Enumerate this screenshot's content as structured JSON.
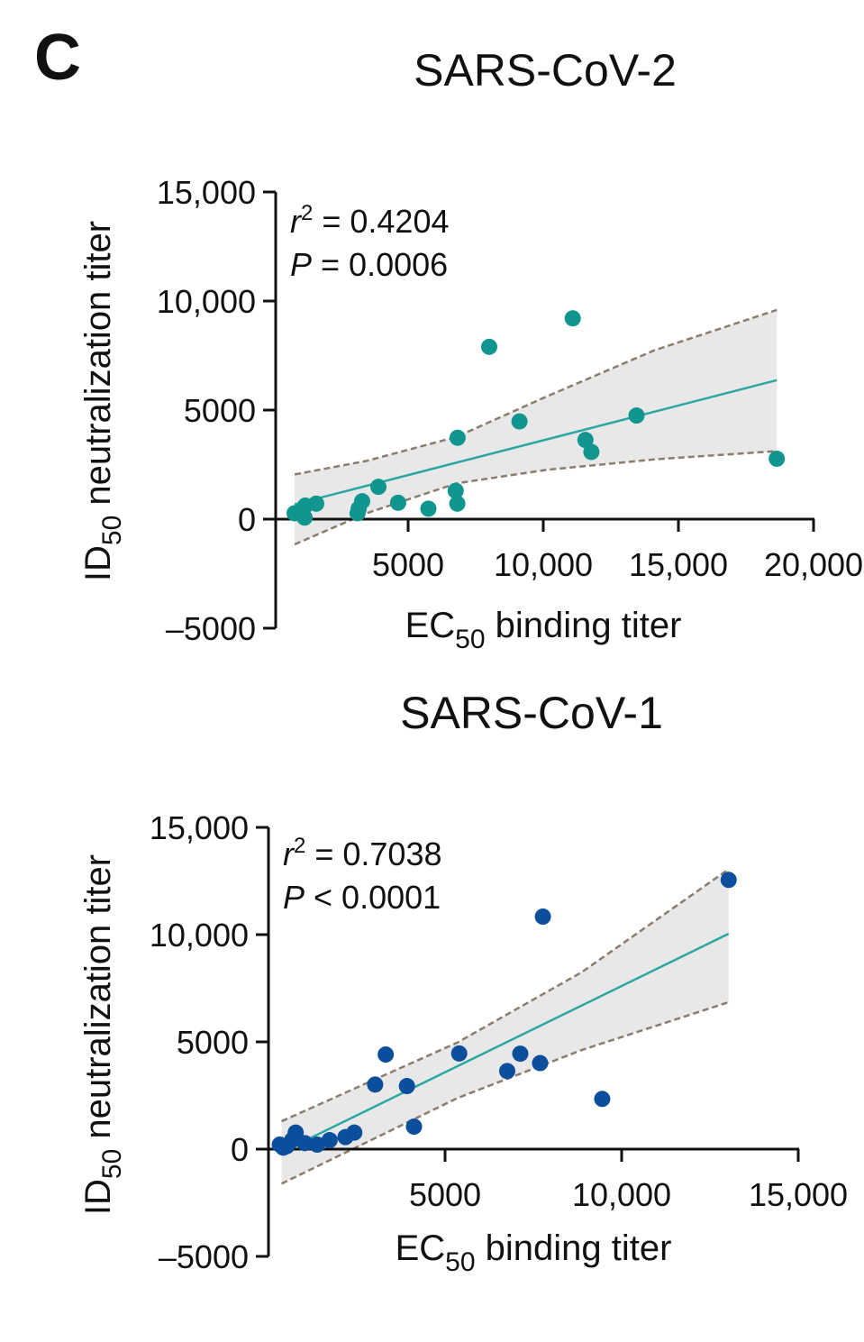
{
  "panel_label": "C",
  "chart_data": [
    {
      "type": "scatter",
      "title": "SARS-CoV-2",
      "xlabel": {
        "main": "EC",
        "sub": "50",
        "rest": " binding titer"
      },
      "ylabel": {
        "main": "ID",
        "sub": "50",
        "rest": " neutralization titer"
      },
      "xlim": [
        0,
        20000
      ],
      "ylim": [
        -5000,
        15000
      ],
      "xticks": [
        5000,
        10000,
        15000,
        20000
      ],
      "xtick_labels": [
        "5000",
        "10,000",
        "15,000",
        "20,000"
      ],
      "yticks": [
        -5000,
        0,
        5000,
        10000,
        15000
      ],
      "ytick_labels": [
        "–5000",
        "0",
        "5000",
        "10,000",
        "15,000"
      ],
      "stats": {
        "r2_label": "r",
        "r2_sup": "2",
        "r2_value": " = 0.4204",
        "p_label": "P",
        "p_value": " = 0.0006"
      },
      "point_color": "#11958f",
      "line_color": "#2aa7a3",
      "points": [
        [
          11090,
          9205
        ],
        [
          8000,
          7900
        ],
        [
          9120,
          4480
        ],
        [
          13450,
          4750
        ],
        [
          6830,
          3730
        ],
        [
          11560,
          3630
        ],
        [
          11780,
          3080
        ],
        [
          18640,
          2770
        ],
        [
          3900,
          1480
        ],
        [
          4630,
          750
        ],
        [
          5750,
          480
        ],
        [
          6760,
          1300
        ],
        [
          6820,
          710
        ],
        [
          3300,
          820
        ],
        [
          3170,
          480
        ],
        [
          3130,
          270
        ],
        [
          1600,
          710
        ],
        [
          1200,
          620
        ],
        [
          930,
          300
        ],
        [
          1170,
          70
        ],
        [
          800,
          270
        ]
      ],
      "fit": {
        "x": [
          800,
          18640
        ],
        "y": [
          680,
          6370
        ]
      },
      "ci_upper": [
        [
          800,
          2050
        ],
        [
          3460,
          2670
        ],
        [
          6790,
          3770
        ],
        [
          10120,
          5620
        ],
        [
          14110,
          7740
        ],
        [
          18640,
          9590
        ]
      ],
      "ci_lower": [
        [
          800,
          -1160
        ],
        [
          3460,
          270
        ],
        [
          6790,
          1640
        ],
        [
          10120,
          2260
        ],
        [
          14110,
          2740
        ],
        [
          18640,
          3120
        ]
      ]
    },
    {
      "type": "scatter",
      "title": "SARS-CoV-1",
      "xlabel": {
        "main": "EC",
        "sub": "50",
        "rest": " binding titer"
      },
      "ylabel": {
        "main": "ID",
        "sub": "50",
        "rest": " neutralization titer"
      },
      "xlim": [
        0,
        15000
      ],
      "ylim": [
        -5000,
        15000
      ],
      "xticks": [
        5000,
        10000,
        15000
      ],
      "xtick_labels": [
        "5000",
        "10,000",
        "15,000"
      ],
      "yticks": [
        -5000,
        0,
        5000,
        10000,
        15000
      ],
      "ytick_labels": [
        "–5000",
        "0",
        "5000",
        "10,000",
        "15,000"
      ],
      "stats": {
        "r2_label": "r",
        "r2_sup": "2",
        "r2_value": " = 0.7038",
        "p_label": "P",
        "p_value": " < 0.0001"
      },
      "point_color": "#0b4f9c",
      "line_color": "#2aa7a3",
      "points": [
        [
          13030,
          12550
        ],
        [
          7770,
          10840
        ],
        [
          3320,
          4410
        ],
        [
          5400,
          4460
        ],
        [
          7130,
          4450
        ],
        [
          7690,
          4010
        ],
        [
          6760,
          3640
        ],
        [
          3020,
          3010
        ],
        [
          3920,
          2940
        ],
        [
          9450,
          2340
        ],
        [
          4120,
          1050
        ],
        [
          2430,
          770
        ],
        [
          2180,
          560
        ],
        [
          1730,
          420
        ],
        [
          1380,
          210
        ],
        [
          1030,
          280
        ],
        [
          770,
          770
        ],
        [
          520,
          140
        ],
        [
          320,
          210
        ],
        [
          420,
          70
        ],
        [
          670,
          420
        ]
      ],
      "fit": {
        "x": [
          320,
          13030
        ],
        "y": [
          -180,
          10040
        ]
      },
      "ci_upper": [
        [
          370,
          1300
        ],
        [
          5350,
          4970
        ],
        [
          8870,
          8250
        ],
        [
          13030,
          13050
        ]
      ],
      "ci_lower": [
        [
          370,
          -1610
        ],
        [
          5350,
          2380
        ],
        [
          8870,
          4620
        ],
        [
          13030,
          6850
        ]
      ]
    }
  ]
}
